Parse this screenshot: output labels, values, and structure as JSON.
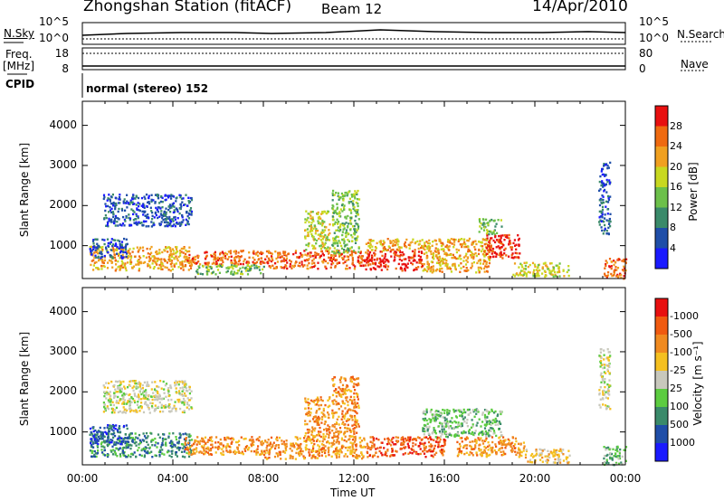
{
  "header": {
    "title": "Zhongshan Station (fitACF)",
    "beam": "Beam 12",
    "date": "14/Apr/2010"
  },
  "small_panels": {
    "nsky_label": "N.Sky",
    "nsearch_label": "N.Search",
    "freq_label_line1": "Freq.",
    "freq_label_line2": "[MHz]",
    "nave_label": "Nave",
    "cpid_label": "CPID",
    "cpid_text": "normal (stereo) 152",
    "nsky_ticks": [
      "10^5",
      "10^0"
    ],
    "nsearch_ticks": [
      "10^5",
      "10^0"
    ],
    "freq_ticks": [
      "18",
      "8"
    ],
    "nave_ticks": [
      "80",
      "0"
    ]
  },
  "chart_data": [
    {
      "type": "heatmap",
      "panel": "power",
      "ylabel": "Slant Range [km]",
      "ylim": [
        180,
        4600
      ],
      "yticks": [
        "1000",
        "2000",
        "3000",
        "4000"
      ],
      "ytick_values": [
        1000,
        2000,
        3000,
        4000
      ],
      "xlim": [
        0,
        24
      ],
      "colorbar_label": "Power [dB]",
      "colorbar_ticks": [
        "4",
        "8",
        "12",
        "16",
        "20",
        "24",
        "28"
      ],
      "colorbar_colors": [
        "#1a1aff",
        "#1f4ea8",
        "#3a8a6a",
        "#6cc04a",
        "#c8d820",
        "#f0a020",
        "#ef6a10",
        "#e81010"
      ],
      "regions": [
        {
          "t0": 0.3,
          "t1": 4.8,
          "r0": 400,
          "r1": 1000,
          "level": 5
        },
        {
          "t0": 0.3,
          "t1": 2.0,
          "r0": 700,
          "r1": 1200,
          "level": 1
        },
        {
          "t0": 0.9,
          "t1": 4.8,
          "r0": 1500,
          "r1": 2300,
          "level": 1
        },
        {
          "t0": 4.5,
          "t1": 8.0,
          "r0": 550,
          "r1": 900,
          "level": 6
        },
        {
          "t0": 5.0,
          "t1": 8.0,
          "r0": 300,
          "r1": 550,
          "level": 3
        },
        {
          "t0": 8.0,
          "t1": 12.5,
          "r0": 450,
          "r1": 900,
          "level": 6
        },
        {
          "t0": 9.8,
          "t1": 10.9,
          "r0": 900,
          "r1": 1900,
          "level": 4
        },
        {
          "t0": 11.0,
          "t1": 12.2,
          "r0": 800,
          "r1": 2400,
          "level": 3
        },
        {
          "t0": 12.5,
          "t1": 15.0,
          "r0": 400,
          "r1": 900,
          "level": 7
        },
        {
          "t0": 12.5,
          "t1": 15.0,
          "r0": 900,
          "r1": 1200,
          "level": 5
        },
        {
          "t0": 15.0,
          "t1": 18.0,
          "r0": 350,
          "r1": 1200,
          "level": 5
        },
        {
          "t0": 17.5,
          "t1": 18.5,
          "r0": 1300,
          "r1": 1700,
          "level": 3
        },
        {
          "t0": 17.8,
          "t1": 19.3,
          "r0": 700,
          "r1": 1300,
          "level": 7
        },
        {
          "t0": 19.0,
          "t1": 21.5,
          "r0": 250,
          "r1": 600,
          "level": 4
        },
        {
          "t0": 22.8,
          "t1": 23.3,
          "r0": 1300,
          "r1": 3100,
          "level": 1
        },
        {
          "t0": 23.0,
          "t1": 24.0,
          "r0": 200,
          "r1": 700,
          "level": 6
        }
      ]
    },
    {
      "type": "heatmap",
      "panel": "velocity",
      "ylabel": "Slant Range [km]",
      "ylim": [
        180,
        4600
      ],
      "yticks": [
        "1000",
        "2000",
        "3000",
        "4000"
      ],
      "ytick_values": [
        1000,
        2000,
        3000,
        4000
      ],
      "xlim": [
        0,
        24
      ],
      "xticks": [
        "00:00",
        "04:00",
        "08:00",
        "12:00",
        "16:00",
        "20:00",
        "00:00"
      ],
      "xtick_values": [
        0,
        4,
        8,
        12,
        16,
        20,
        24
      ],
      "xlabel": "Time UT",
      "colorbar_label": "Velocity [m s⁻¹]",
      "colorbar_ticks": [
        "1000",
        "500",
        "100",
        "25",
        "-25",
        "-100",
        "-500",
        "-1000"
      ],
      "colorbar_colors": [
        "#1a1aff",
        "#1f4ea8",
        "#3a8a6a",
        "#5ccc40",
        "#c8c8bc",
        "#f5c020",
        "#f08a20",
        "#f05a10",
        "#e81010"
      ],
      "regions": [
        {
          "t0": 0.3,
          "t1": 4.8,
          "r0": 400,
          "r1": 1000,
          "level": 2
        },
        {
          "t0": 0.3,
          "t1": 2.0,
          "r0": 700,
          "r1": 1200,
          "level": 1
        },
        {
          "t0": 0.9,
          "t1": 4.8,
          "r0": 1500,
          "r1": 2300,
          "level": 4
        },
        {
          "t0": 4.5,
          "t1": 8.0,
          "r0": 450,
          "r1": 900,
          "level": 6
        },
        {
          "t0": 8.0,
          "t1": 12.5,
          "r0": 350,
          "r1": 900,
          "level": 6
        },
        {
          "t0": 9.8,
          "t1": 10.9,
          "r0": 900,
          "r1": 1900,
          "level": 6
        },
        {
          "t0": 11.0,
          "t1": 12.2,
          "r0": 900,
          "r1": 2400,
          "level": 6
        },
        {
          "t0": 12.5,
          "t1": 16.0,
          "r0": 400,
          "r1": 900,
          "level": 7
        },
        {
          "t0": 15.0,
          "t1": 18.5,
          "r0": 900,
          "r1": 1600,
          "level": 3
        },
        {
          "t0": 16.5,
          "t1": 19.5,
          "r0": 400,
          "r1": 900,
          "level": 6
        },
        {
          "t0": 19.5,
          "t1": 21.5,
          "r0": 250,
          "r1": 600,
          "level": 5
        },
        {
          "t0": 22.8,
          "t1": 23.3,
          "r0": 1600,
          "r1": 3100,
          "level": 4
        },
        {
          "t0": 23.0,
          "t1": 24.0,
          "r0": 200,
          "r1": 700,
          "level": 3
        }
      ]
    }
  ]
}
